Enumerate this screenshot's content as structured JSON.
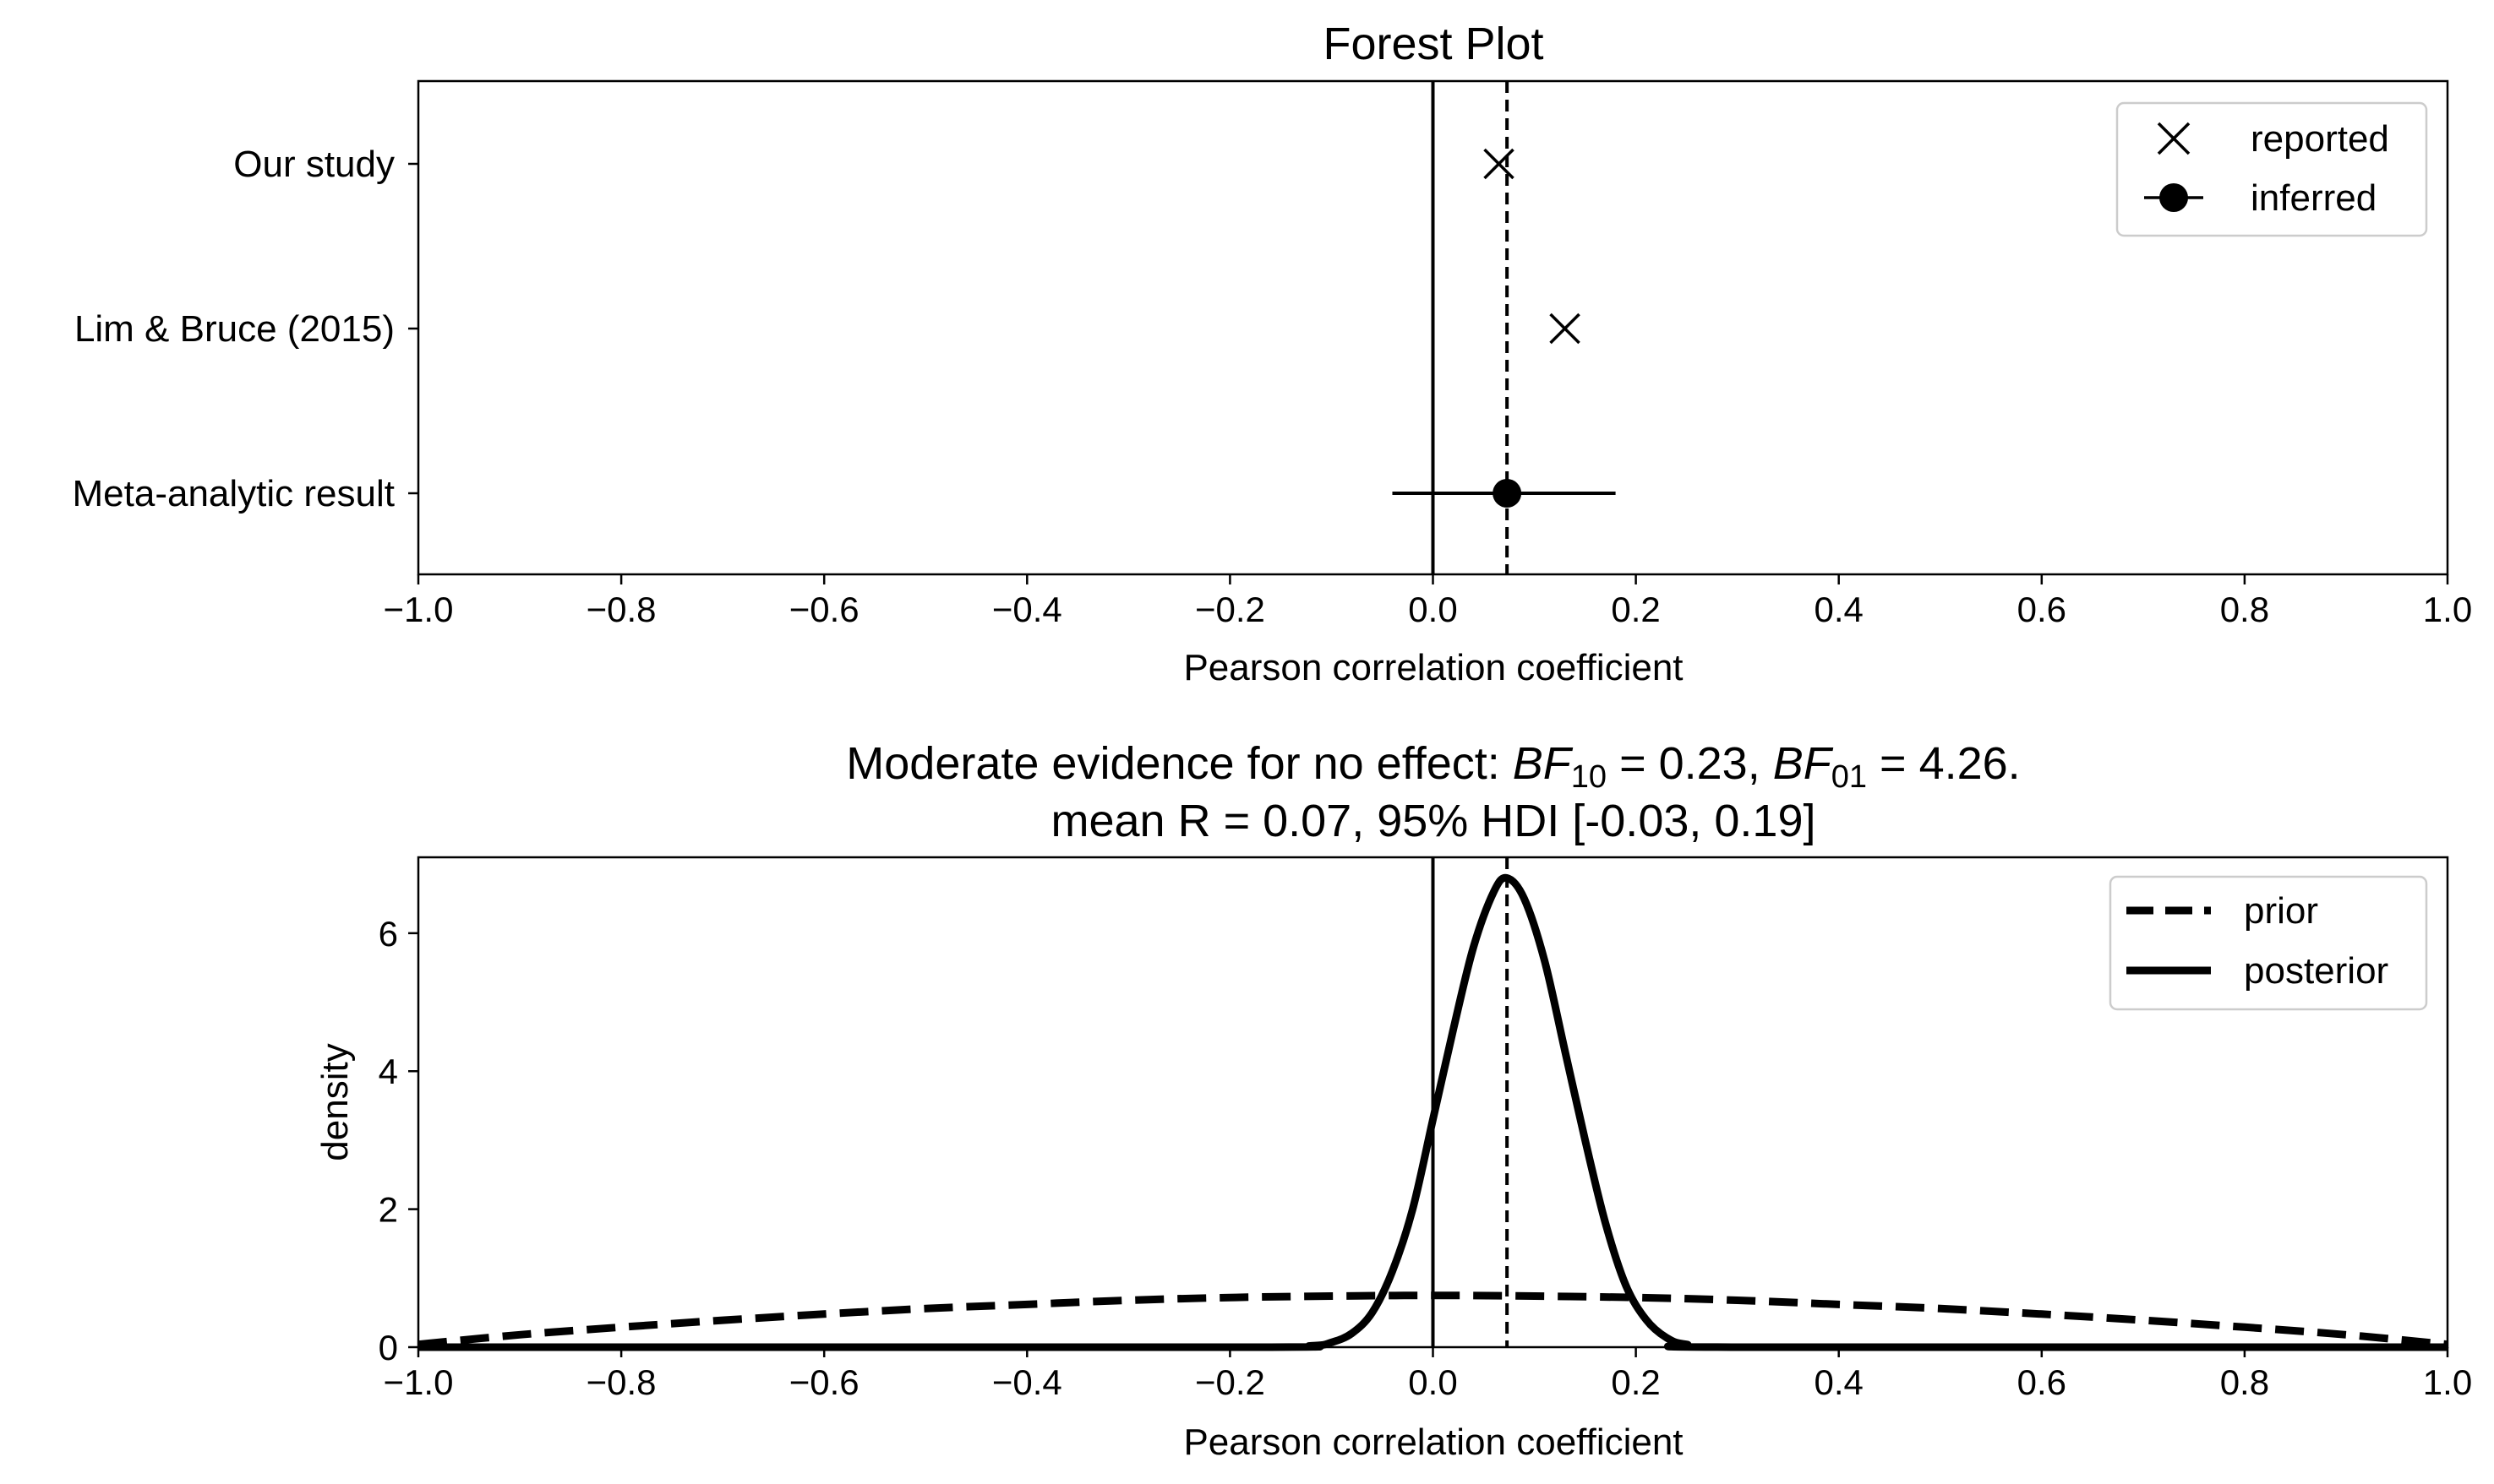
{
  "chart_data": [
    {
      "type": "forest",
      "title": "Forest Plot",
      "xlabel": "Pearson correlation coefficient",
      "xlim": [
        -1.0,
        1.0
      ],
      "xticks": [
        "−1.0",
        "−0.8",
        "−0.6",
        "−0.4",
        "−0.2",
        "0.0",
        "0.2",
        "0.4",
        "0.6",
        "0.8",
        "1.0"
      ],
      "xtick_values": [
        -1.0,
        -0.8,
        -0.6,
        -0.4,
        -0.2,
        0.0,
        0.2,
        0.4,
        0.6,
        0.8,
        1.0
      ],
      "rows": [
        {
          "label": "Our study",
          "value": 0.065,
          "marker": "reported"
        },
        {
          "label": "Lim & Bruce (2015)",
          "value": 0.13,
          "marker": "reported"
        },
        {
          "label": "Meta-analytic result",
          "value": 0.073,
          "ci": [
            -0.04,
            0.18
          ],
          "marker": "inferred"
        }
      ],
      "reference_lines": {
        "zero": 0.0,
        "mean": 0.073
      },
      "legend": {
        "position": "upper right",
        "entries": [
          "reported",
          "inferred"
        ]
      },
      "grid": false
    },
    {
      "type": "line",
      "title_main": "Moderate evidence for no effect: ",
      "bf10_label": "BF",
      "bf10_sub": "10",
      "bf10_value": " = 0.23, ",
      "bf01_label": "BF",
      "bf01_sub": "01",
      "bf01_value": " = 4.26.",
      "subtitle": "mean R = 0.07, 95% HDI [-0.03, 0.19]",
      "xlabel": "Pearson correlation coefficient",
      "ylabel": "density",
      "xlim": [
        -1.0,
        1.0
      ],
      "ylim": [
        0,
        7.1
      ],
      "xticks": [
        "−1.0",
        "−0.8",
        "−0.6",
        "−0.4",
        "−0.2",
        "0.0",
        "0.2",
        "0.4",
        "0.6",
        "0.8",
        "1.0"
      ],
      "xtick_values": [
        -1.0,
        -0.8,
        -0.6,
        -0.4,
        -0.2,
        0.0,
        0.2,
        0.4,
        0.6,
        0.8,
        1.0
      ],
      "yticks": [
        "0",
        "2",
        "4",
        "6"
      ],
      "ytick_values": [
        0,
        2,
        4,
        6
      ],
      "reference_lines": {
        "zero": 0.0,
        "mean": 0.073
      },
      "legend": {
        "position": "upper right",
        "entries": [
          "prior",
          "posterior"
        ]
      },
      "series": [
        {
          "name": "prior",
          "style": "dashed",
          "x": [
            -1.0,
            -0.9,
            -0.8,
            -0.7,
            -0.6,
            -0.5,
            -0.4,
            -0.3,
            -0.2,
            -0.1,
            0.0,
            0.1,
            0.2,
            0.3,
            0.4,
            0.5,
            0.6,
            0.7,
            0.8,
            0.9,
            1.0
          ],
          "y": [
            0.04,
            0.18,
            0.29,
            0.39,
            0.48,
            0.56,
            0.62,
            0.68,
            0.72,
            0.74,
            0.75,
            0.74,
            0.72,
            0.68,
            0.62,
            0.56,
            0.48,
            0.39,
            0.29,
            0.18,
            0.04
          ]
        },
        {
          "name": "posterior",
          "style": "solid",
          "x": [
            -1.0,
            -0.2,
            -0.12,
            -0.1,
            -0.08,
            -0.06,
            -0.04,
            -0.02,
            0.0,
            0.02,
            0.04,
            0.06,
            0.073,
            0.09,
            0.11,
            0.13,
            0.15,
            0.17,
            0.19,
            0.21,
            0.23,
            0.25,
            0.3,
            1.0
          ],
          "y": [
            0,
            0,
            0.02,
            0.07,
            0.2,
            0.5,
            1.1,
            2.0,
            3.3,
            4.6,
            5.8,
            6.6,
            6.8,
            6.5,
            5.6,
            4.3,
            3.0,
            1.8,
            0.9,
            0.4,
            0.14,
            0.04,
            0,
            0
          ]
        }
      ],
      "grid": false
    }
  ]
}
